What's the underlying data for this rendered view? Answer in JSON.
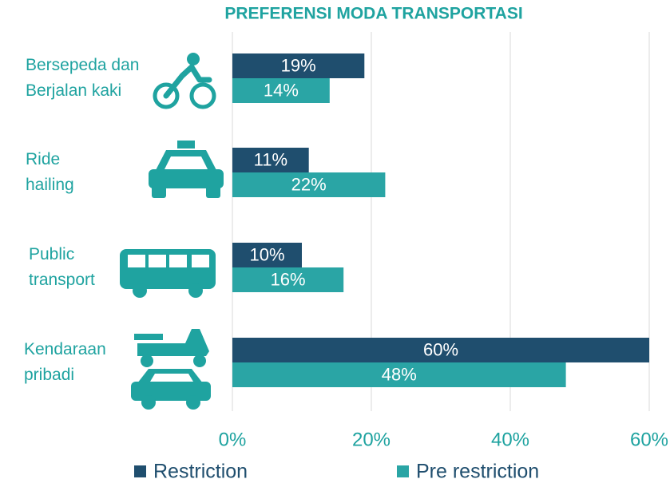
{
  "chart_data": {
    "type": "bar",
    "orientation": "horizontal",
    "title": "PREFERENSI MODA TRANSPORTASI",
    "categories": [
      "Bersepeda dan Berjalan kaki",
      "Ride hailing",
      "Public transport",
      "Kendaraan pribadi"
    ],
    "series": [
      {
        "name": "Restriction",
        "color": "#1f4e6e",
        "values": [
          19,
          11,
          10,
          60
        ],
        "value_labels": [
          "19%",
          "11%",
          "10%",
          "60%"
        ]
      },
      {
        "name": "Pre restriction",
        "color": "#2aa5a5",
        "values": [
          14,
          22,
          16,
          48
        ],
        "value_labels": [
          "14%",
          "22%",
          "16%",
          "48%"
        ]
      }
    ],
    "xlim": [
      0,
      60
    ],
    "xticks": [
      {
        "value": 0,
        "label": "0%"
      },
      {
        "value": 20,
        "label": "20%"
      },
      {
        "value": 40,
        "label": "40%"
      },
      {
        "value": 60,
        "label": "60%"
      }
    ],
    "grid": true,
    "legend": "bottom"
  }
}
